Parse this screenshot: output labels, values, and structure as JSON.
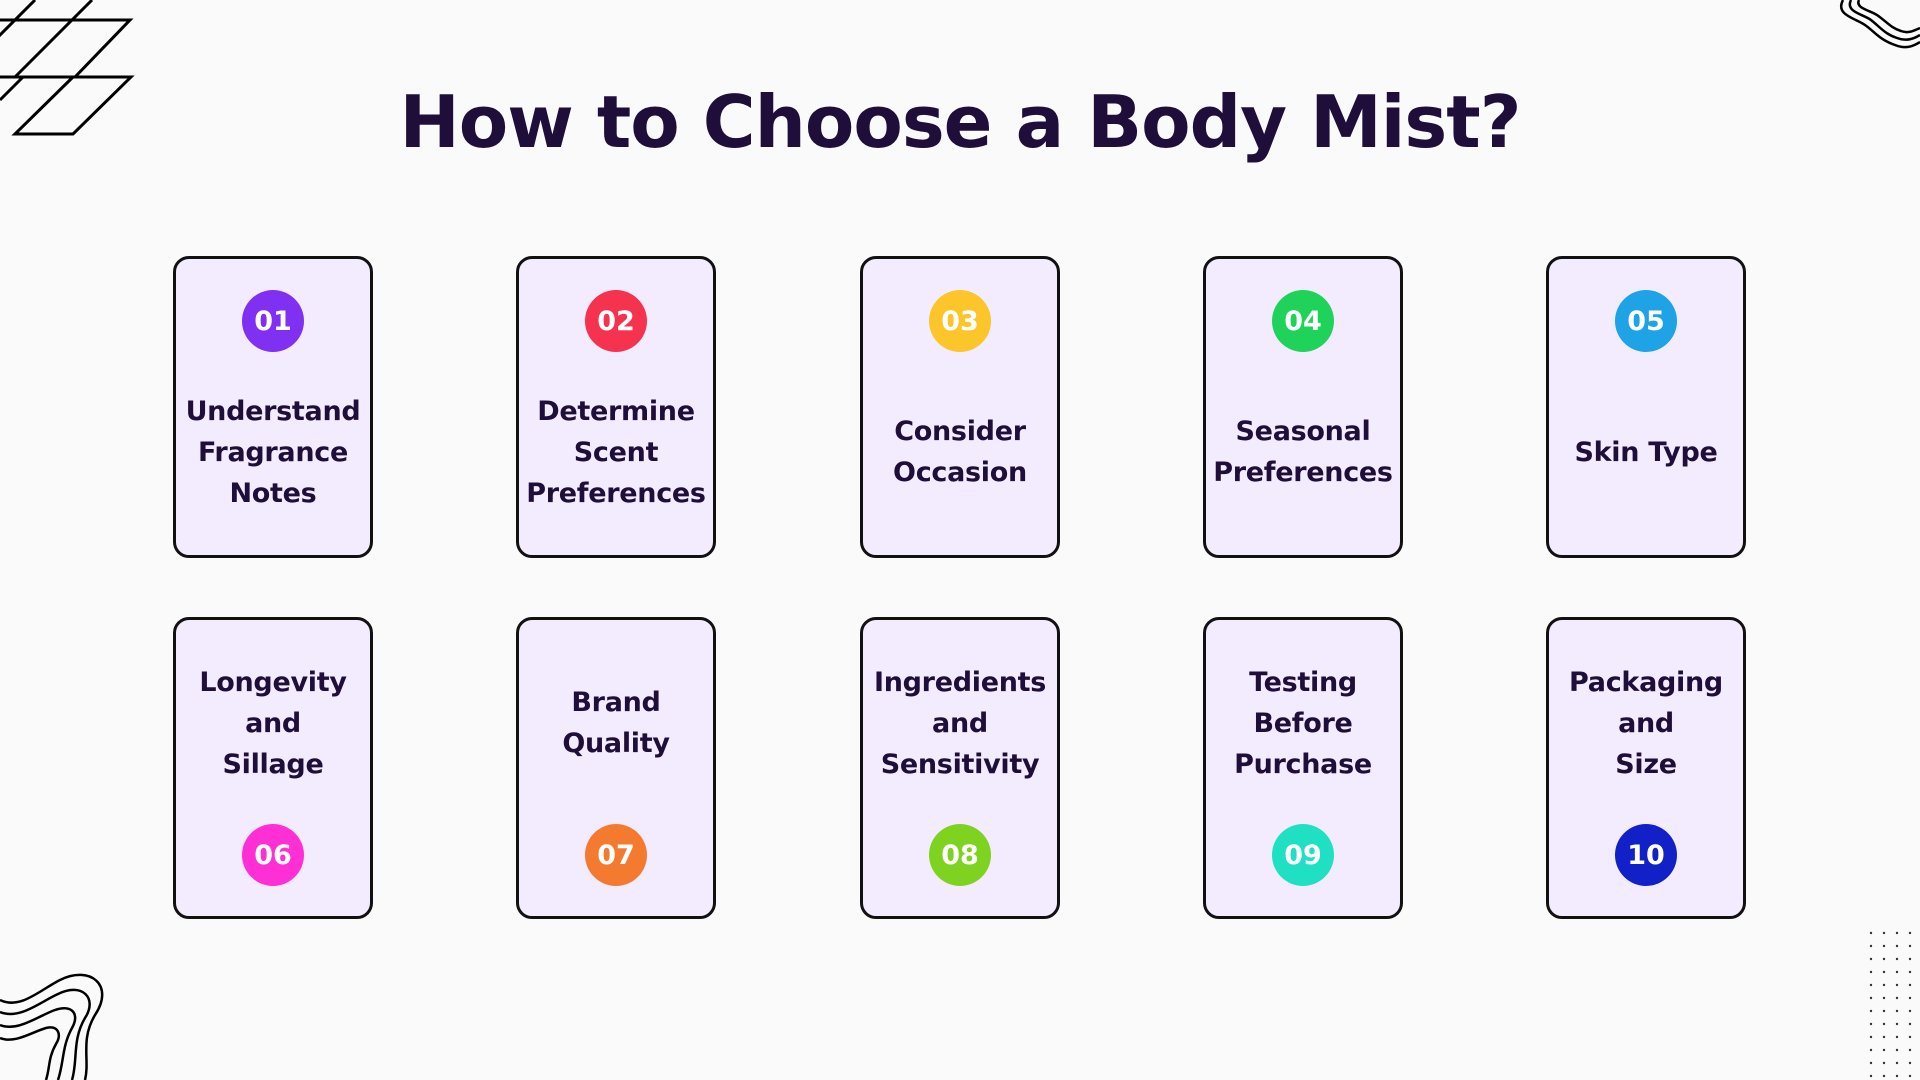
{
  "title": "How to Choose a Body Mist?",
  "steps": [
    {
      "number": "01",
      "label": "Understand\nFragrance\nNotes",
      "color": "#8030f0"
    },
    {
      "number": "02",
      "label": "Determine\nScent\nPreferences",
      "color": "#f5334f"
    },
    {
      "number": "03",
      "label": "Consider\nOccasion",
      "color": "#fcc52a"
    },
    {
      "number": "04",
      "label": "Seasonal\nPreferences",
      "color": "#1fd35a"
    },
    {
      "number": "05",
      "label": "Skin Type",
      "color": "#1ea3e6"
    },
    {
      "number": "06",
      "label": "Longevity\nand\nSillage",
      "color": "#ff2fd6"
    },
    {
      "number": "07",
      "label": "Brand\nQuality",
      "color": "#f47a30"
    },
    {
      "number": "08",
      "label": "Ingredients\nand\nSensitivity",
      "color": "#7ed321"
    },
    {
      "number": "09",
      "label": "Testing\nBefore\nPurchase",
      "color": "#1fe0c2"
    },
    {
      "number": "10",
      "label": "Packaging\nand\nSize",
      "color": "#1220c8"
    }
  ],
  "icons": {
    "top_left": "grid-lines-decoration",
    "top_right": "wavy-lines-decoration",
    "bottom_left": "wavy-lines-decoration",
    "bottom_right": "dot-grid-decoration"
  }
}
